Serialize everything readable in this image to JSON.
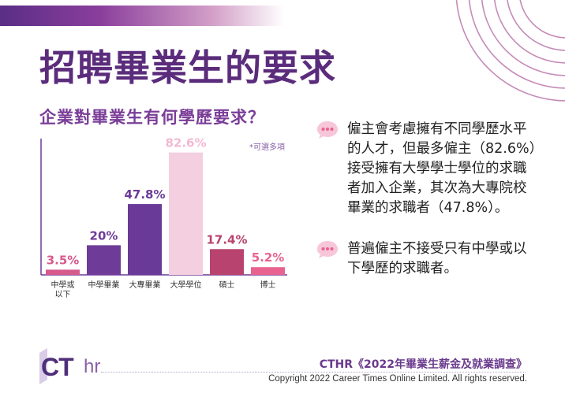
{
  "title": "招聘畢業生的要求",
  "subtitle": "企業對畢業生有何學歷要求？",
  "chart_data": {
    "type": "bar",
    "categories": [
      "中學或以下",
      "中學畢業",
      "大專畢業",
      "大學學位",
      "碩士",
      "博士"
    ],
    "category_lines": [
      [
        "中學或",
        "以下"
      ],
      [
        "中學畢業"
      ],
      [
        "大專畢業"
      ],
      [
        "大學學位"
      ],
      [
        "碩士"
      ],
      [
        "博士"
      ]
    ],
    "values": [
      3.5,
      20,
      47.8,
      82.6,
      17.4,
      5.2
    ],
    "value_labels": [
      "3.5%",
      "20%",
      "47.8%",
      "82.6%",
      "17.4%",
      "5.2%"
    ],
    "bar_colors": [
      "#d65a8c",
      "#6e3c98",
      "#6a3a98",
      "#f3cfe0",
      "#b8436e",
      "#e8638f"
    ],
    "label_colors": [
      "#d65a8c",
      "#6e3c98",
      "#6a3a98",
      "#f3b8d2",
      "#b8436e",
      "#e8638f"
    ],
    "note": "*可選多項",
    "ylim": [
      0,
      100
    ]
  },
  "bullets": [
    {
      "icon": "speech-bubble-icon",
      "text": "僱主會考慮擁有不同學歷水平的人才，但最多僱主（82.6%）接受擁有大學學士學位的求職者加入企業，其次為大專院校畢業的求職者（47.8%）。"
    },
    {
      "icon": "speech-bubble-icon",
      "text": "普遍僱主不接受只有中學或以下學歷的求職者。"
    }
  ],
  "footer": {
    "source": "CTHR《2022年畢業生薪金及就業調查》",
    "copyright": "Copyright 2022 Career Times Online Limited. All rights reserved.",
    "logo_ct": "CT",
    "logo_hr": "hr"
  },
  "colors": {
    "accent": "#5b2c7c",
    "pink": "#e8638f"
  }
}
